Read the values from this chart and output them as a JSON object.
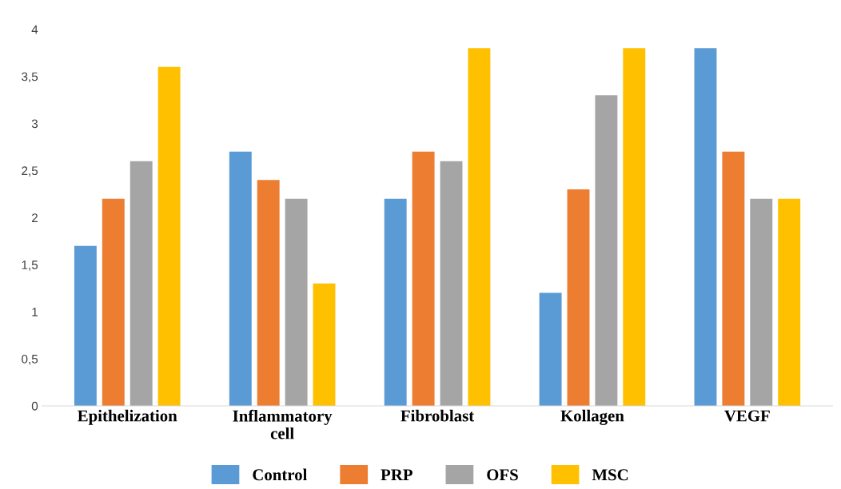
{
  "chart_data": {
    "type": "bar",
    "categories": [
      "Epithelization",
      "Inflammatory cell",
      "Fibroblast",
      "Kollagen",
      "VEGF"
    ],
    "series": [
      {
        "name": "Control",
        "color": "#5b9bd5",
        "values": [
          1.7,
          2.7,
          2.2,
          1.2,
          3.8
        ]
      },
      {
        "name": "PRP",
        "color": "#ed7d31",
        "values": [
          2.2,
          2.4,
          2.7,
          2.3,
          2.7
        ]
      },
      {
        "name": "OFS",
        "color": "#a5a5a5",
        "values": [
          2.6,
          2.2,
          2.6,
          3.3,
          2.2
        ]
      },
      {
        "name": "MSC",
        "color": "#ffc000",
        "values": [
          3.6,
          1.3,
          3.8,
          3.8,
          2.2
        ]
      }
    ],
    "ylim": [
      0,
      4
    ],
    "yticks": [
      0,
      {
        "value": 0.5,
        "label": "0,5"
      },
      1,
      {
        "value": 1.5,
        "label": "1,5"
      },
      2,
      {
        "value": 2.5,
        "label": "2,5"
      },
      3,
      {
        "value": 3.5,
        "label": "3,5"
      },
      4
    ],
    "grid": false,
    "legend": "bottom"
  }
}
